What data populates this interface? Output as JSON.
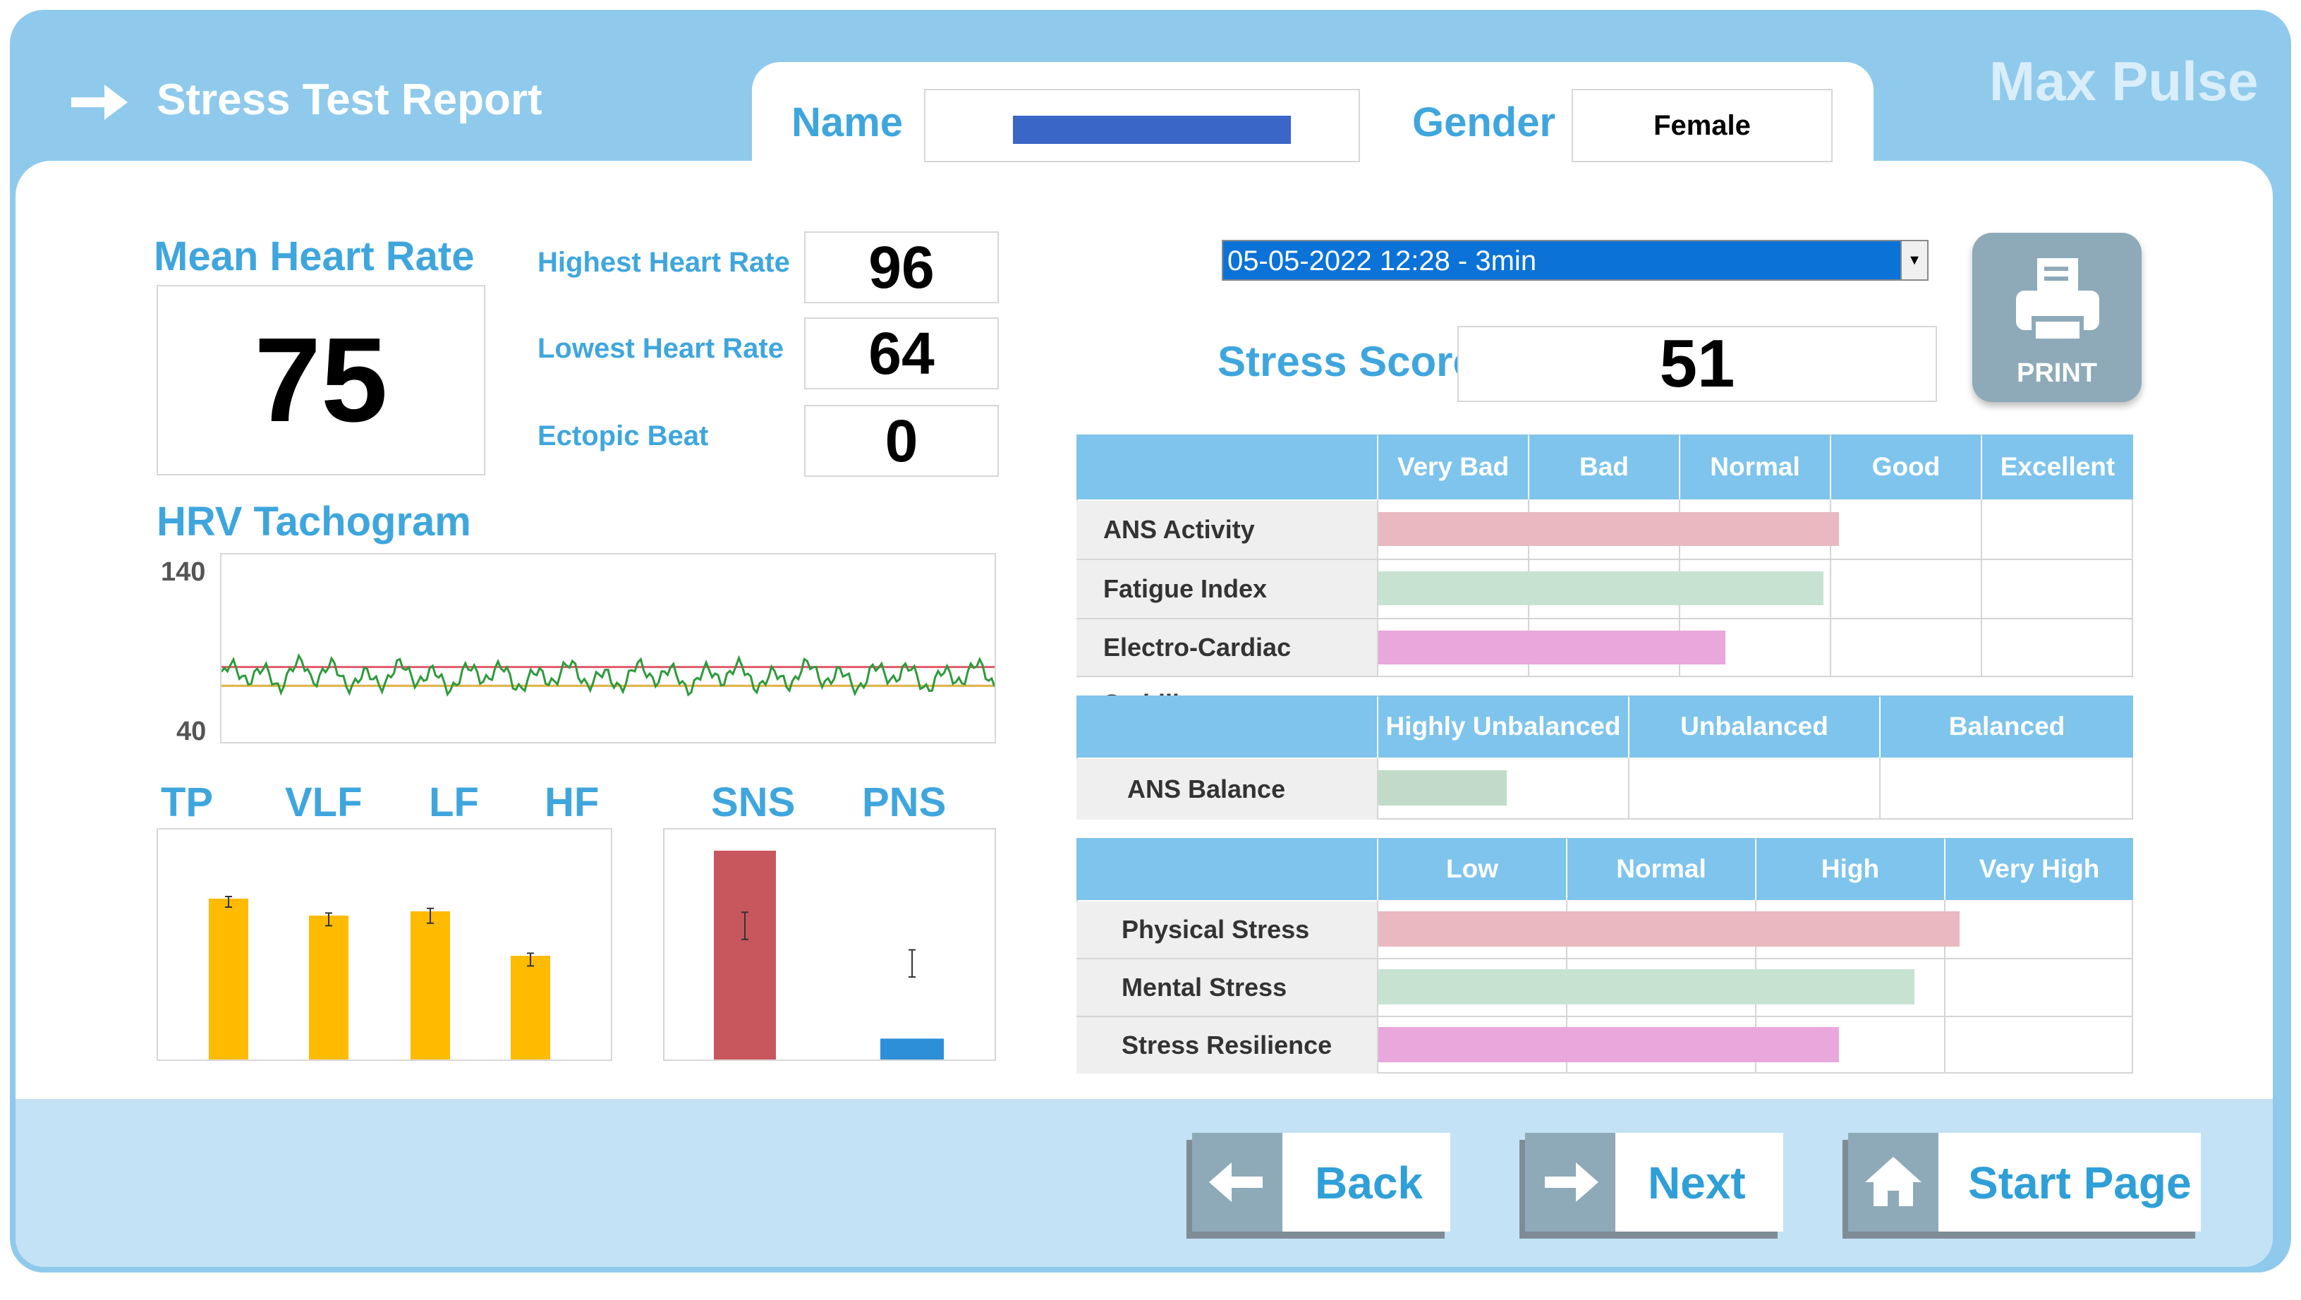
{
  "header": {
    "title": "Stress Test Report",
    "brand": "Max Pulse",
    "name_label": "Name",
    "name_value": "",
    "gender_label": "Gender",
    "gender_value": "Female"
  },
  "metrics": {
    "mean_hr_label": "Mean Heart Rate",
    "mean_hr_value": "75",
    "highest_label": "Highest Heart Rate",
    "highest_value": "96",
    "lowest_label": "Lowest Heart Rate",
    "lowest_value": "64",
    "ectopic_label": "Ectopic Beat",
    "ectopic_value": "0"
  },
  "session": {
    "selected": "05-05-2022 12:28 - 3min",
    "print_label": "PRINT",
    "stress_score_label": "Stress Score",
    "stress_score_value": "51"
  },
  "tachogram": {
    "title": "HRV Tachogram",
    "y_max_label": "140",
    "y_min_label": "40",
    "y_range": [
      40,
      140
    ],
    "upper_ref": 80,
    "lower_ref": 70
  },
  "spectrum": {
    "labels": [
      "TP",
      "VLF",
      "LF",
      "HF"
    ],
    "values": [
      0.76,
      0.68,
      0.7,
      0.49
    ],
    "err": [
      0.05,
      0.06,
      0.07,
      0.06
    ]
  },
  "autonomic": {
    "labels": [
      "SNS",
      "PNS"
    ],
    "values": [
      1.0,
      0.1
    ],
    "err_center": [
      0.64,
      0.46
    ],
    "err": [
      0.13,
      0.13
    ]
  },
  "table1": {
    "headers": [
      "Very Bad",
      "Bad",
      "Normal",
      "Good",
      "Excellent"
    ],
    "rows": [
      {
        "label": "ANS Activity",
        "value": 0.61,
        "color": "#e9b8c0"
      },
      {
        "label": "Fatigue Index",
        "value": 0.59,
        "color": "#c8e2d2"
      },
      {
        "label": "Electro-Cardiac Stability",
        "value": 0.46,
        "color": "#e9a7dc"
      }
    ]
  },
  "table2": {
    "headers": [
      "Highly Unbalanced",
      "Unbalanced",
      "Balanced"
    ],
    "rows": [
      {
        "label": "ANS Balance",
        "value": 0.17,
        "color": "#c1dbc8"
      }
    ]
  },
  "table3": {
    "headers": [
      "Low",
      "Normal",
      "High",
      "Very High"
    ],
    "rows": [
      {
        "label": "Physical Stress",
        "value": 0.77,
        "color": "#e9b8c0"
      },
      {
        "label": "Mental Stress",
        "value": 0.71,
        "color": "#c8e2d2"
      },
      {
        "label": "Stress Resilience",
        "value": 0.61,
        "color": "#e9a7dc"
      }
    ]
  },
  "nav": {
    "back": "Back",
    "next": "Next",
    "start": "Start Page"
  },
  "colors": {
    "accent": "#3fa6dd",
    "bar_orange": "#ffbb00",
    "sns": "#c8575d",
    "pns": "#2e8fd9",
    "line_green": "#2e9a3c"
  }
}
